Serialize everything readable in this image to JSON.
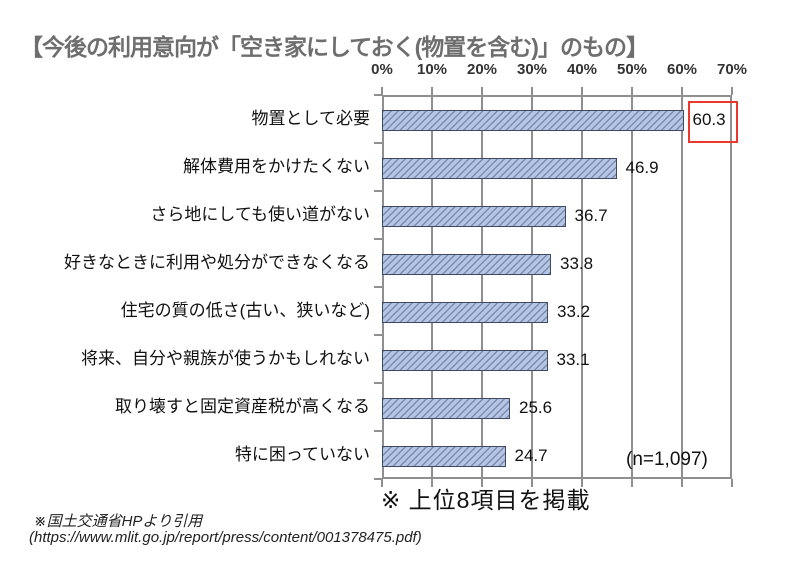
{
  "title": "【今後の利用意向が「空き家にしておく(物置を含む)」のもの】",
  "chart_data": {
    "type": "bar",
    "orientation": "horizontal",
    "title": "【今後の利用意向が「空き家にしておく(物置を含む)」のもの】",
    "categories": [
      "物置として必要",
      "解体費用をかけたくない",
      "さら地にしても使い道がない",
      "好きなときに利用や処分ができなくなる",
      "住宅の質の低さ(古い、狭いなど)",
      "将来、自分や親族が使うかもしれない",
      "取り壊すと固定資産税が高くなる",
      "特に困っていない"
    ],
    "values": [
      60.3,
      46.9,
      36.7,
      33.8,
      33.2,
      33.1,
      25.6,
      24.7
    ],
    "x_ticks": [
      "0%",
      "10%",
      "20%",
      "30%",
      "40%",
      "50%",
      "60%",
      "70%"
    ],
    "xlim": [
      0,
      70
    ],
    "grid": "vertical-major",
    "legend": "none",
    "highlighted_value_index": 0,
    "sample_size_label": "(n=1,097)",
    "colors": {
      "bar_fill": "#b3c6ea",
      "bar_border": "#3e4a62",
      "hatch_pattern": "diagonal-up",
      "gridline": "#8f8f8f",
      "highlight_box": "#e8392b",
      "title_text": "#6e6e6e"
    }
  },
  "notes": {
    "top8": "※ 上位8項目を掲載",
    "source_line1": "※国土交通省HPより引用",
    "source_line2": "(https://www.mlit.go.jp/report/press/content/001378475.pdf)"
  }
}
